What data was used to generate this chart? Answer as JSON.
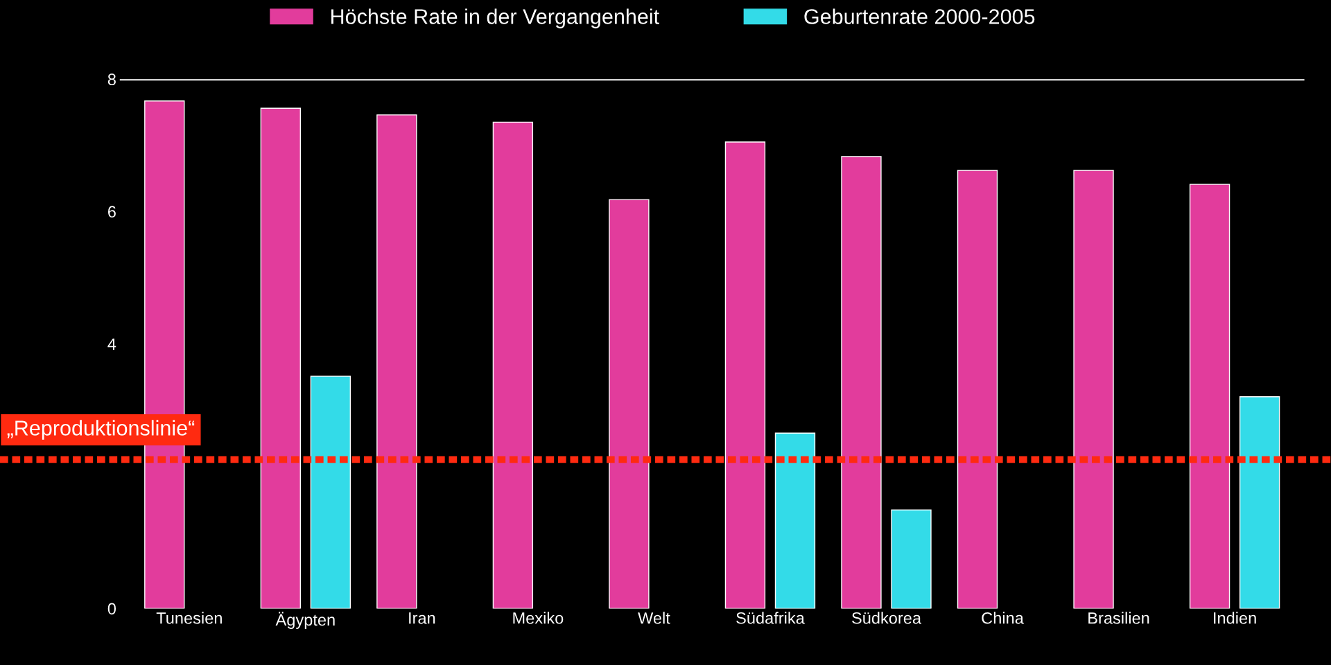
{
  "chart_data": {
    "type": "bar",
    "categories": [
      "Tunesien",
      "Ägypten",
      "Iran",
      "Mexiko",
      "Welt",
      "Südafrika",
      "Südkorea",
      "China",
      "Brasilien",
      "Indien"
    ],
    "series": [
      {
        "name": "Höchste Rate in der Vergangenheit",
        "color": "#e23c9c",
        "values": [
          7.67,
          7.56,
          7.46,
          7.35,
          6.18,
          7.05,
          6.83,
          6.62,
          6.62,
          6.41
        ]
      },
      {
        "name": "Geburtenrate 2000-2005",
        "color": "#33dbe8",
        "values": [
          null,
          3.51,
          null,
          null,
          null,
          2.65,
          1.49,
          null,
          null,
          3.2
        ]
      }
    ],
    "ylim": [
      0,
      8
    ],
    "yticks": [
      0,
      4,
      6,
      8
    ],
    "ref_lines": [
      {
        "axis": "y",
        "value": 8,
        "color": "#ffffff",
        "line_style": "solid"
      },
      {
        "axis": "y",
        "value": 2.25,
        "label": "„Reproduktionslinie“",
        "color": "#ff2a10",
        "line_style": "dotted"
      }
    ],
    "legend": "top",
    "grid": false
  }
}
